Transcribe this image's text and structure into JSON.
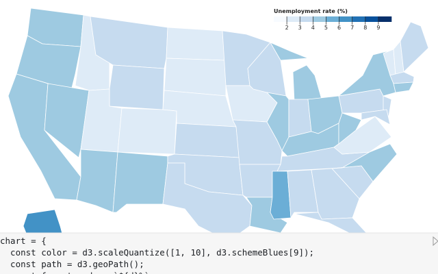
{
  "chart_data": {
    "type": "choropleth",
    "legend_title": "Unemployment rate (%)",
    "domain": [
      1,
      10
    ],
    "scheme": [
      "#f7fbff",
      "#deebf7",
      "#c6dbef",
      "#9ecae1",
      "#6baed6",
      "#4292c6",
      "#2171b5",
      "#08519c",
      "#08306b"
    ],
    "legend_ticks": [
      2,
      3,
      4,
      5,
      6,
      7,
      8,
      9
    ],
    "values": [
      4.5,
      4.5,
      4.5,
      4.5,
      2.5,
      3.5,
      3.5,
      2.5,
      4.5,
      2.5,
      4.5,
      2.5,
      2.5,
      2.5,
      3.5,
      3.5,
      3.5,
      3.5,
      2.5,
      3.5,
      3.5,
      4.5,
      3.5,
      4.5,
      4.5,
      3.5,
      4.5,
      4.5,
      3.5,
      5.5,
      3.5,
      3.5,
      3.5,
      3.5,
      4.5,
      2.5,
      4.5,
      3.5,
      4.5,
      3.5,
      3.5,
      2.5,
      2.5,
      3.5,
      3.5,
      4.5,
      6.5
    ]
  },
  "code": {
    "lines": [
      "chart = {",
      "  const color = d3.scaleQuantize([1, 10], d3.schemeBlues[9]);",
      "  const path = d3.geoPath();",
      "  const format = d => `${d}%`;"
    ]
  }
}
